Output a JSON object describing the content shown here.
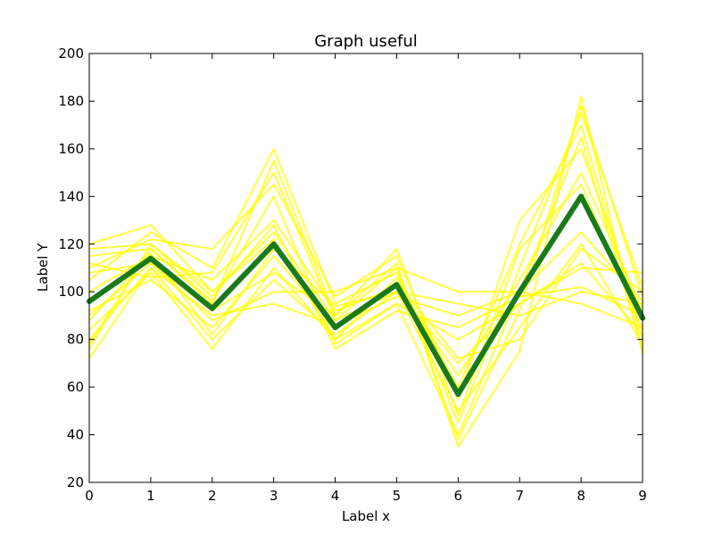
{
  "chart_data": {
    "type": "line",
    "title": "Graph useful",
    "xlabel": "Label x",
    "ylabel": "Label Y",
    "xlim": [
      0,
      9
    ],
    "ylim": [
      20,
      200
    ],
    "x_ticks": [
      0,
      1,
      2,
      3,
      4,
      5,
      6,
      7,
      8,
      9
    ],
    "y_ticks": [
      20,
      40,
      60,
      80,
      100,
      120,
      140,
      160,
      180,
      200
    ],
    "grid": false,
    "legend": "none",
    "colors": {
      "highlight": "#1a7a1a",
      "background_lines": "#ffff00"
    },
    "x": [
      0,
      1,
      2,
      3,
      4,
      5,
      6,
      7,
      8,
      9
    ],
    "highlight_series": {
      "values": [
        96,
        114,
        93,
        120,
        85,
        103,
        57,
        100,
        140,
        89
      ]
    },
    "background_series": [
      [
        72,
        110,
        80,
        105,
        82,
        100,
        50,
        85,
        120,
        78
      ],
      [
        78,
        118,
        95,
        155,
        90,
        112,
        35,
        75,
        182,
        74
      ],
      [
        118,
        120,
        100,
        125,
        88,
        100,
        95,
        90,
        100,
        95
      ],
      [
        84,
        108,
        76,
        110,
        80,
        95,
        80,
        95,
        112,
        82
      ],
      [
        105,
        125,
        110,
        160,
        95,
        108,
        45,
        110,
        175,
        102
      ],
      [
        90,
        112,
        88,
        100,
        100,
        110,
        100,
        100,
        95,
        85
      ],
      [
        100,
        115,
        105,
        130,
        92,
        102,
        65,
        105,
        150,
        92
      ],
      [
        115,
        118,
        96,
        140,
        78,
        95,
        40,
        100,
        165,
        75
      ],
      [
        92,
        105,
        85,
        115,
        85,
        104,
        72,
        80,
        118,
        100
      ],
      [
        110,
        122,
        118,
        145,
        98,
        115,
        55,
        130,
        160,
        88
      ],
      [
        80,
        110,
        90,
        95,
        86,
        98,
        90,
        100,
        125,
        96
      ],
      [
        120,
        128,
        100,
        122,
        80,
        106,
        60,
        120,
        170,
        80
      ],
      [
        88,
        116,
        82,
        118,
        94,
        100,
        70,
        95,
        110,
        108
      ],
      [
        108,
        112,
        92,
        108,
        90,
        118,
        48,
        118,
        145,
        84
      ],
      [
        76,
        120,
        98,
        128,
        76,
        92,
        85,
        98,
        102,
        90
      ],
      [
        112,
        106,
        108,
        150,
        88,
        110,
        38,
        92,
        178,
        98
      ]
    ]
  }
}
